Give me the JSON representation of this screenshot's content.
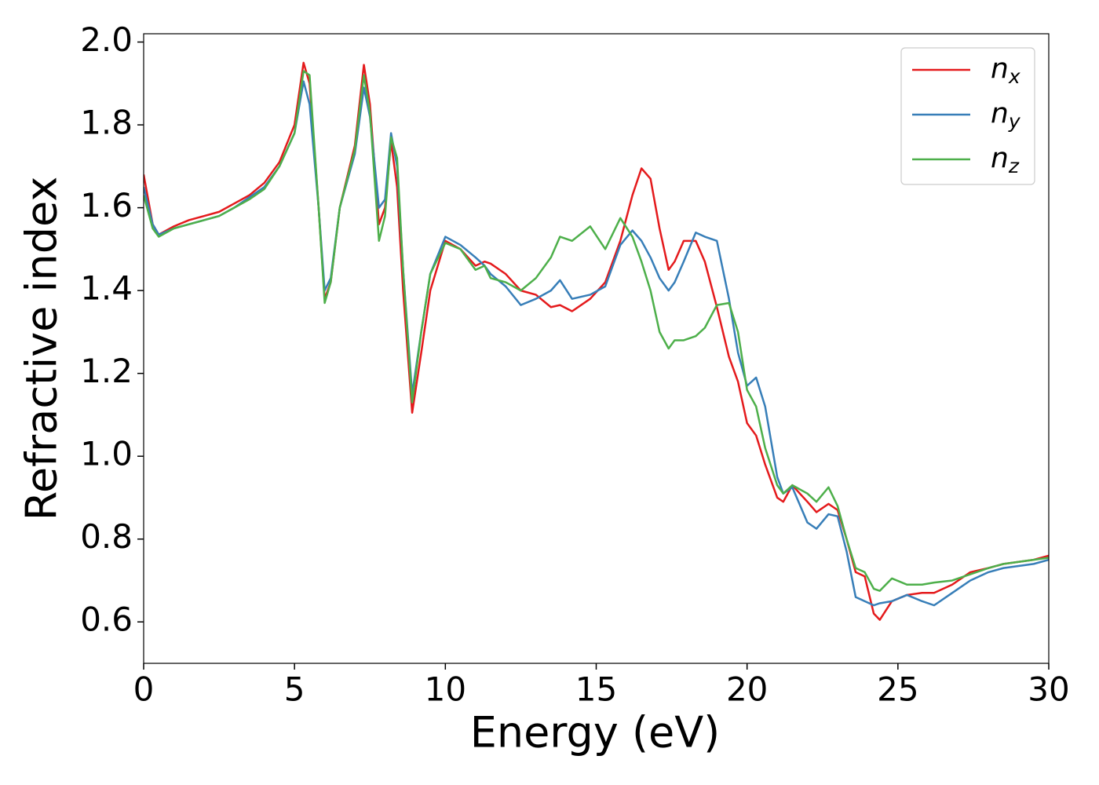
{
  "chart_data": {
    "type": "line",
    "xlabel": "Energy (eV)",
    "ylabel": "Refractive index",
    "x": [
      0,
      0.3,
      0.5,
      1,
      1.5,
      2,
      2.5,
      3,
      3.5,
      4,
      4.5,
      5,
      5.3,
      5.5,
      5.8,
      6,
      6.2,
      6.5,
      7,
      7.3,
      7.5,
      7.8,
      8,
      8.2,
      8.4,
      8.6,
      8.9,
      9.2,
      9.5,
      10,
      10.5,
      11,
      11.3,
      11.5,
      12,
      12.5,
      13,
      13.5,
      13.8,
      14.2,
      14.8,
      15.3,
      15.8,
      16.2,
      16.5,
      16.8,
      17.1,
      17.4,
      17.6,
      17.9,
      18.3,
      18.6,
      19,
      19.4,
      19.7,
      20,
      20.3,
      20.6,
      21,
      21.2,
      21.5,
      22,
      22.3,
      22.7,
      23,
      23.3,
      23.6,
      23.9,
      24.2,
      24.4,
      24.8,
      25.3,
      25.8,
      26.2,
      26.8,
      27.4,
      28,
      28.5,
      29,
      29.5,
      30
    ],
    "series": [
      {
        "name": "nx",
        "color": "#e41a1c",
        "values": [
          1.68,
          1.56,
          1.535,
          1.555,
          1.57,
          1.58,
          1.59,
          1.61,
          1.63,
          1.66,
          1.71,
          1.8,
          1.95,
          1.9,
          1.6,
          1.38,
          1.42,
          1.6,
          1.75,
          1.945,
          1.85,
          1.56,
          1.6,
          1.76,
          1.65,
          1.4,
          1.105,
          1.25,
          1.4,
          1.52,
          1.5,
          1.46,
          1.47,
          1.465,
          1.44,
          1.4,
          1.39,
          1.36,
          1.365,
          1.35,
          1.38,
          1.42,
          1.52,
          1.63,
          1.695,
          1.67,
          1.55,
          1.45,
          1.47,
          1.52,
          1.52,
          1.47,
          1.36,
          1.24,
          1.18,
          1.08,
          1.05,
          0.98,
          0.9,
          0.89,
          0.93,
          0.89,
          0.865,
          0.885,
          0.87,
          0.8,
          0.72,
          0.71,
          0.62,
          0.605,
          0.65,
          0.665,
          0.67,
          0.67,
          0.69,
          0.72,
          0.73,
          0.74,
          0.745,
          0.75,
          0.76
        ]
      },
      {
        "name": "ny",
        "color": "#377eb8",
        "values": [
          1.65,
          1.56,
          1.535,
          1.55,
          1.56,
          1.57,
          1.58,
          1.6,
          1.625,
          1.65,
          1.7,
          1.78,
          1.905,
          1.85,
          1.6,
          1.4,
          1.43,
          1.6,
          1.73,
          1.89,
          1.82,
          1.6,
          1.62,
          1.78,
          1.7,
          1.45,
          1.15,
          1.3,
          1.44,
          1.53,
          1.51,
          1.48,
          1.46,
          1.44,
          1.41,
          1.365,
          1.38,
          1.4,
          1.425,
          1.38,
          1.39,
          1.41,
          1.51,
          1.545,
          1.52,
          1.48,
          1.43,
          1.4,
          1.42,
          1.47,
          1.54,
          1.53,
          1.52,
          1.38,
          1.25,
          1.17,
          1.19,
          1.12,
          0.95,
          0.91,
          0.925,
          0.84,
          0.825,
          0.86,
          0.855,
          0.77,
          0.66,
          0.65,
          0.64,
          0.645,
          0.65,
          0.665,
          0.65,
          0.64,
          0.67,
          0.7,
          0.72,
          0.73,
          0.735,
          0.74,
          0.75
        ]
      },
      {
        "name": "nz",
        "color": "#4daf4a",
        "values": [
          1.63,
          1.55,
          1.53,
          1.55,
          1.56,
          1.57,
          1.58,
          1.6,
          1.62,
          1.645,
          1.7,
          1.78,
          1.93,
          1.92,
          1.6,
          1.37,
          1.42,
          1.6,
          1.74,
          1.92,
          1.83,
          1.52,
          1.58,
          1.77,
          1.72,
          1.45,
          1.13,
          1.3,
          1.44,
          1.515,
          1.5,
          1.45,
          1.46,
          1.43,
          1.42,
          1.4,
          1.43,
          1.48,
          1.53,
          1.52,
          1.555,
          1.5,
          1.575,
          1.53,
          1.47,
          1.4,
          1.3,
          1.26,
          1.28,
          1.28,
          1.29,
          1.31,
          1.365,
          1.37,
          1.3,
          1.16,
          1.12,
          1.02,
          0.93,
          0.91,
          0.93,
          0.91,
          0.89,
          0.925,
          0.88,
          0.8,
          0.73,
          0.72,
          0.68,
          0.675,
          0.705,
          0.69,
          0.69,
          0.695,
          0.7,
          0.715,
          0.73,
          0.74,
          0.745,
          0.75,
          0.755
        ]
      }
    ],
    "xlim": [
      0,
      30
    ],
    "xticks": [
      0,
      5,
      10,
      15,
      20,
      25,
      30
    ],
    "ylim": [
      0.5,
      2.02
    ],
    "yticks": [
      0.6,
      0.8,
      {
        "value": 1,
        "label": "1.0"
      },
      1.2,
      1.4,
      1.6,
      1.8,
      {
        "value": 2,
        "label": "2.0"
      }
    ],
    "grid": false,
    "legend": "upper right"
  }
}
